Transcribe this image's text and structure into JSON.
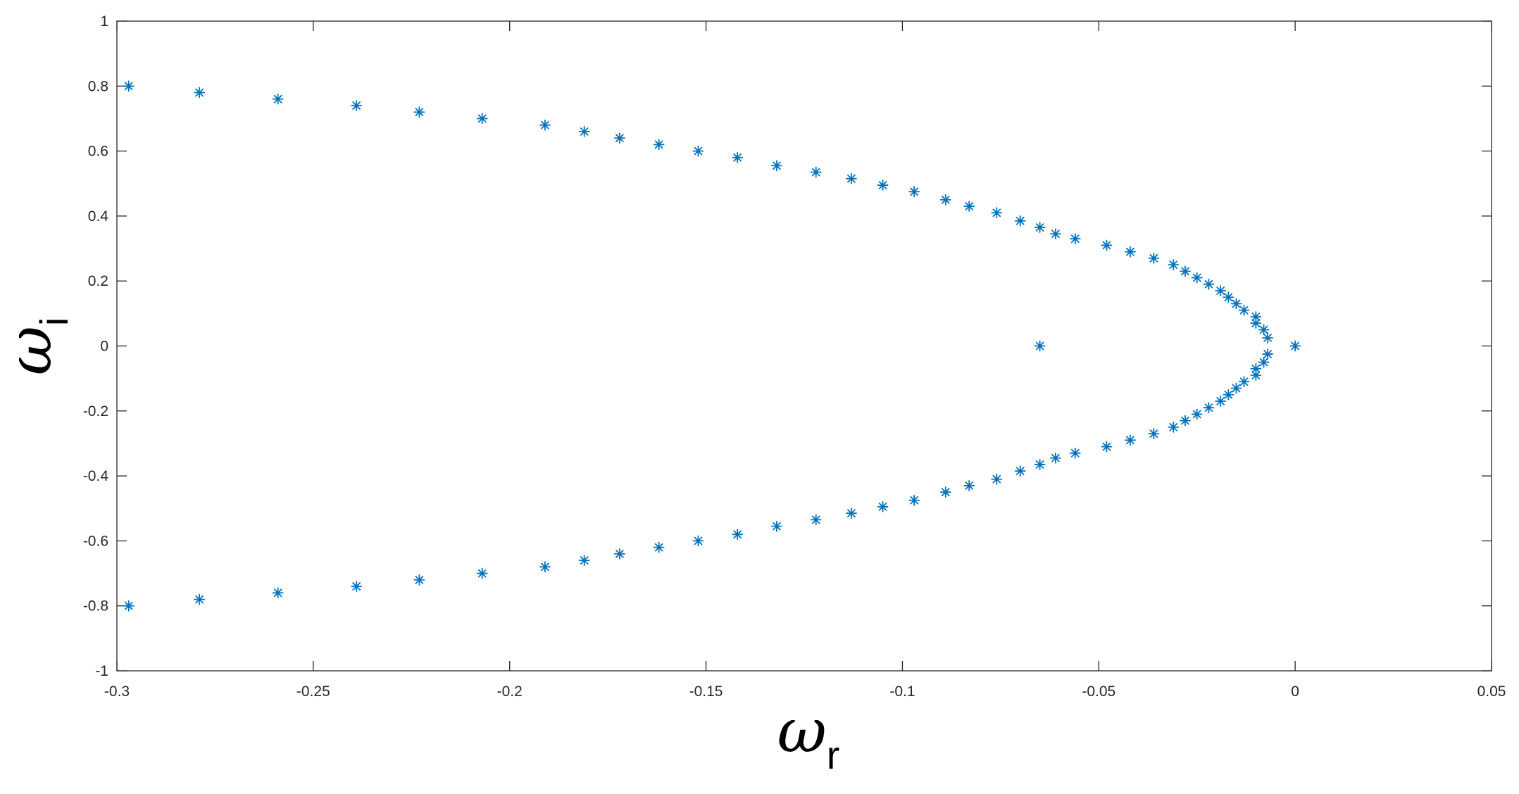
{
  "chart_data": {
    "type": "scatter",
    "title": "",
    "xlabel": {
      "symbol": "ω",
      "subscript": "r"
    },
    "ylabel": {
      "symbol": "ω",
      "subscript": "i"
    },
    "xlim": [
      -0.3,
      0.05
    ],
    "ylim": [
      -1,
      1
    ],
    "grid": false,
    "marker": "asterisk",
    "color": "#0072BD",
    "xticks": [
      -0.3,
      -0.25,
      -0.2,
      -0.15,
      -0.1,
      -0.05,
      0,
      0.05
    ],
    "xtick_labels": [
      "-0.3",
      "-0.25",
      "-0.2",
      "-0.15",
      "-0.1",
      "-0.05",
      "0",
      "0.05"
    ],
    "yticks": [
      -1,
      -0.8,
      -0.6,
      -0.4,
      -0.2,
      0,
      0.2,
      0.4,
      0.6,
      0.8,
      1
    ],
    "ytick_labels": [
      "-1",
      "-0.8",
      "-0.6",
      "-0.4",
      "-0.2",
      "0",
      "0.2",
      "0.4",
      "0.6",
      "0.8",
      "1"
    ],
    "series": [
      {
        "points": [
          [
            -0.297,
            0.8
          ],
          [
            -0.279,
            0.78
          ],
          [
            -0.259,
            0.76
          ],
          [
            -0.239,
            0.74
          ],
          [
            -0.223,
            0.72
          ],
          [
            -0.207,
            0.7
          ],
          [
            -0.191,
            0.68
          ],
          [
            -0.181,
            0.66
          ],
          [
            -0.172,
            0.64
          ],
          [
            -0.162,
            0.62
          ],
          [
            -0.152,
            0.6
          ],
          [
            -0.142,
            0.58
          ],
          [
            -0.132,
            0.555
          ],
          [
            -0.122,
            0.535
          ],
          [
            -0.113,
            0.515
          ],
          [
            -0.105,
            0.495
          ],
          [
            -0.097,
            0.475
          ],
          [
            -0.089,
            0.45
          ],
          [
            -0.083,
            0.43
          ],
          [
            -0.076,
            0.41
          ],
          [
            -0.07,
            0.385
          ],
          [
            -0.065,
            0.365
          ],
          [
            -0.061,
            0.345
          ],
          [
            -0.056,
            0.33
          ],
          [
            -0.048,
            0.31
          ],
          [
            -0.042,
            0.29
          ],
          [
            -0.036,
            0.27
          ],
          [
            -0.031,
            0.25
          ],
          [
            -0.028,
            0.23
          ],
          [
            -0.025,
            0.21
          ],
          [
            -0.022,
            0.19
          ],
          [
            -0.019,
            0.17
          ],
          [
            -0.017,
            0.15
          ],
          [
            -0.015,
            0.13
          ],
          [
            -0.013,
            0.11
          ],
          [
            -0.01,
            0.09
          ],
          [
            -0.01,
            0.07
          ],
          [
            -0.008,
            0.05
          ],
          [
            -0.007,
            0.025
          ],
          [
            -0.297,
            -0.8
          ],
          [
            -0.279,
            -0.78
          ],
          [
            -0.259,
            -0.76
          ],
          [
            -0.239,
            -0.74
          ],
          [
            -0.223,
            -0.72
          ],
          [
            -0.207,
            -0.7
          ],
          [
            -0.191,
            -0.68
          ],
          [
            -0.181,
            -0.66
          ],
          [
            -0.172,
            -0.64
          ],
          [
            -0.162,
            -0.62
          ],
          [
            -0.152,
            -0.6
          ],
          [
            -0.142,
            -0.58
          ],
          [
            -0.132,
            -0.555
          ],
          [
            -0.122,
            -0.535
          ],
          [
            -0.113,
            -0.515
          ],
          [
            -0.105,
            -0.495
          ],
          [
            -0.097,
            -0.475
          ],
          [
            -0.089,
            -0.45
          ],
          [
            -0.083,
            -0.43
          ],
          [
            -0.076,
            -0.41
          ],
          [
            -0.07,
            -0.385
          ],
          [
            -0.065,
            -0.365
          ],
          [
            -0.061,
            -0.345
          ],
          [
            -0.056,
            -0.33
          ],
          [
            -0.048,
            -0.31
          ],
          [
            -0.042,
            -0.29
          ],
          [
            -0.036,
            -0.27
          ],
          [
            -0.031,
            -0.25
          ],
          [
            -0.028,
            -0.23
          ],
          [
            -0.025,
            -0.21
          ],
          [
            -0.022,
            -0.19
          ],
          [
            -0.019,
            -0.17
          ],
          [
            -0.017,
            -0.15
          ],
          [
            -0.015,
            -0.13
          ],
          [
            -0.013,
            -0.11
          ],
          [
            -0.01,
            -0.09
          ],
          [
            -0.01,
            -0.07
          ],
          [
            -0.008,
            -0.05
          ],
          [
            -0.007,
            -0.025
          ],
          [
            -0.065,
            0.0
          ],
          [
            0.0,
            0.0
          ]
        ]
      }
    ]
  }
}
